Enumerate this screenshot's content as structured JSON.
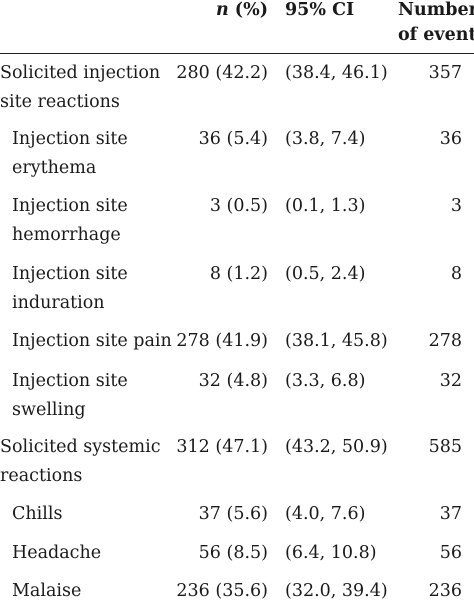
{
  "table": {
    "headers": {
      "n_pct": "n (%)",
      "ci": "95% CI",
      "events_line1": "Number",
      "events_line2": "of events"
    },
    "rows": [
      {
        "label": [
          "Solicited injection",
          "site reactions"
        ],
        "n_pct": "280 (42.2)",
        "ci": "(38.4, 46.1)",
        "events": "357",
        "indent": false
      },
      {
        "label": [
          "Injection site",
          "erythema"
        ],
        "n_pct": "36 (5.4)",
        "ci": "(3.8, 7.4)",
        "events": "36",
        "indent": true
      },
      {
        "label": [
          "Injection site",
          "hemorrhage"
        ],
        "n_pct": "3 (0.5)",
        "ci": "(0.1, 1.3)",
        "events": "3",
        "indent": true
      },
      {
        "label": [
          "Injection site",
          "induration"
        ],
        "n_pct": "8 (1.2)",
        "ci": "(0.5, 2.4)",
        "events": "8",
        "indent": true
      },
      {
        "label": [
          "Injection site pain"
        ],
        "n_pct": "278 (41.9)",
        "ci": "(38.1, 45.8)",
        "events": "278",
        "indent": true
      },
      {
        "label": [
          "Injection site",
          "swelling"
        ],
        "n_pct": "32 (4.8)",
        "ci": "(3.3, 6.8)",
        "events": "32",
        "indent": true
      },
      {
        "label": [
          "Solicited systemic",
          "reactions"
        ],
        "n_pct": "312 (47.1)",
        "ci": "(43.2, 50.9)",
        "events": "585",
        "indent": false
      },
      {
        "label": [
          "Chills"
        ],
        "n_pct": "37 (5.6)",
        "ci": "(4.0, 7.6)",
        "events": "37",
        "indent": true
      },
      {
        "label": [
          "Headache"
        ],
        "n_pct": "56 (8.5)",
        "ci": "(6.4, 10.8)",
        "events": "56",
        "indent": true
      },
      {
        "label": [
          "Malaise"
        ],
        "n_pct": "236 (35.6)",
        "ci": "(32.0, 39.4)",
        "events": "236",
        "indent": true
      }
    ]
  }
}
